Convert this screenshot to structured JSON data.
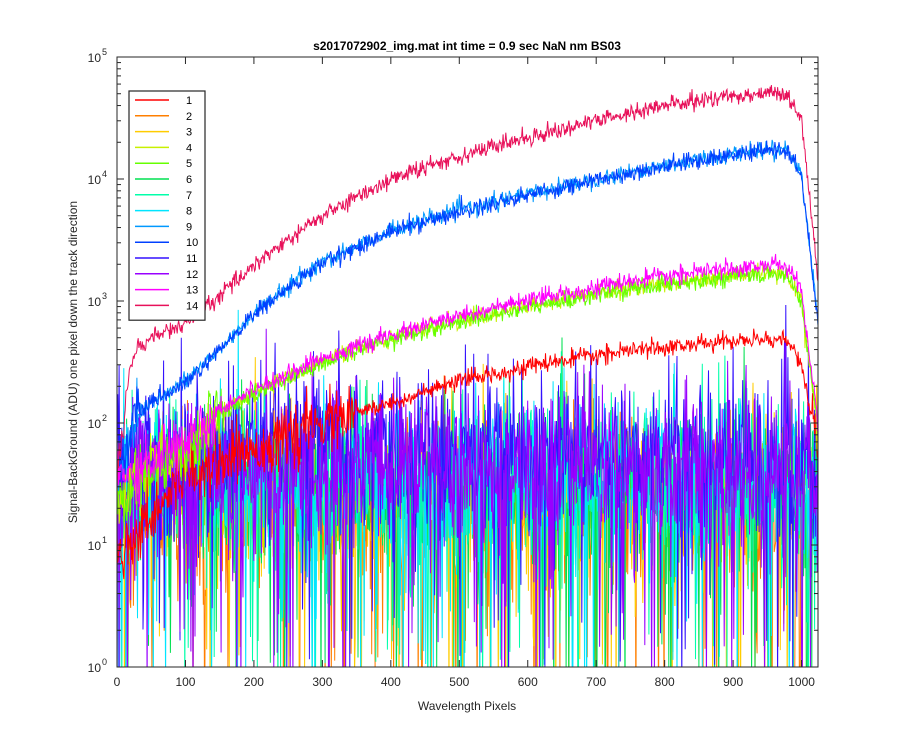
{
  "chart_data": {
    "type": "line",
    "title": "s2017072902_img.mat int time = 0.9 sec  NaN nm BS03",
    "xlabel": "Wavelength Pixels",
    "ylabel": "Signal-BackGround (ADU) one pixel down the track direction",
    "xlim": [
      0,
      1024
    ],
    "ylim": [
      1,
      100000
    ],
    "yscale": "log",
    "grid": false,
    "legend_position": "top-left",
    "x_ticks": [
      0,
      100,
      200,
      300,
      400,
      500,
      600,
      700,
      800,
      900,
      1000
    ],
    "y_ticks": [
      {
        "value": 1,
        "label": "10",
        "exp": "0"
      },
      {
        "value": 10,
        "label": "10",
        "exp": "1"
      },
      {
        "value": 100,
        "label": "10",
        "exp": "2"
      },
      {
        "value": 1000,
        "label": "10",
        "exp": "3"
      },
      {
        "value": 10000,
        "label": "10",
        "exp": "4"
      },
      {
        "value": 100000,
        "label": "10",
        "exp": "5"
      }
    ],
    "series": [
      {
        "name": "1",
        "color": "#ff0000",
        "kind": "signal",
        "x": [
          0,
          100,
          200,
          250,
          300,
          400,
          500,
          600,
          700,
          800,
          900,
          960,
          980,
          1000,
          1024
        ],
        "y": [
          8,
          40,
          62,
          75,
          100,
          145,
          220,
          290,
          360,
          420,
          470,
          490,
          470,
          300,
          60
        ]
      },
      {
        "name": "2",
        "color": "#ff7f00",
        "kind": "noise",
        "x": [
          0,
          200,
          400,
          600,
          800,
          1000,
          1024
        ],
        "y": [
          22,
          22,
          22,
          22,
          22,
          22,
          18
        ]
      },
      {
        "name": "3",
        "color": "#ffcc00",
        "kind": "noise",
        "x": [
          0,
          200,
          400,
          600,
          800,
          1000,
          1024
        ],
        "y": [
          26,
          26,
          26,
          26,
          26,
          26,
          20
        ]
      },
      {
        "name": "4",
        "color": "#c8f000",
        "kind": "signal",
        "x": [
          0,
          50,
          100,
          150,
          200,
          300,
          400,
          500,
          600,
          700,
          800,
          900,
          960,
          980,
          1000,
          1024
        ],
        "y": [
          20,
          45,
          60,
          120,
          180,
          320,
          500,
          700,
          900,
          1150,
          1400,
          1600,
          1700,
          1600,
          1000,
          90
        ]
      },
      {
        "name": "5",
        "color": "#66ff00",
        "kind": "signal",
        "x": [
          0,
          50,
          100,
          150,
          200,
          300,
          400,
          500,
          600,
          700,
          800,
          900,
          960,
          980,
          1000,
          1024
        ],
        "y": [
          20,
          45,
          60,
          115,
          175,
          310,
          480,
          680,
          880,
          1120,
          1380,
          1580,
          1680,
          1580,
          980,
          90
        ]
      },
      {
        "name": "6",
        "color": "#00e050",
        "kind": "noise",
        "x": [
          0,
          200,
          400,
          600,
          800,
          1000,
          1024
        ],
        "y": [
          30,
          30,
          30,
          30,
          30,
          30,
          22
        ]
      },
      {
        "name": "7",
        "color": "#00ffaa",
        "kind": "noise",
        "x": [
          0,
          200,
          400,
          600,
          800,
          1000,
          1024
        ],
        "y": [
          34,
          34,
          34,
          34,
          34,
          34,
          25
        ]
      },
      {
        "name": "8",
        "color": "#00e5ff",
        "kind": "noise",
        "x": [
          0,
          200,
          400,
          600,
          800,
          1000,
          1024
        ],
        "y": [
          36,
          36,
          36,
          36,
          36,
          36,
          26
        ]
      },
      {
        "name": "9",
        "color": "#0099ff",
        "kind": "signal",
        "x": [
          0,
          30,
          50,
          100,
          150,
          200,
          300,
          400,
          500,
          600,
          700,
          800,
          900,
          960,
          980,
          1000,
          1024
        ],
        "y": [
          40,
          120,
          150,
          220,
          400,
          800,
          2100,
          3800,
          5500,
          7500,
          10000,
          13000,
          16000,
          18000,
          17000,
          11000,
          700
        ]
      },
      {
        "name": "10",
        "color": "#0040ff",
        "kind": "signal",
        "x": [
          0,
          30,
          50,
          100,
          150,
          200,
          300,
          400,
          500,
          600,
          700,
          800,
          900,
          960,
          980,
          1000,
          1024
        ],
        "y": [
          40,
          115,
          145,
          210,
          390,
          780,
          2050,
          3700,
          5400,
          7400,
          9800,
          12800,
          15800,
          17500,
          16500,
          10500,
          650
        ]
      },
      {
        "name": "11",
        "color": "#3311ff",
        "kind": "noise",
        "x": [
          0,
          200,
          400,
          600,
          800,
          1000,
          1024
        ],
        "y": [
          52,
          55,
          58,
          58,
          58,
          55,
          40
        ]
      },
      {
        "name": "12",
        "color": "#9900ff",
        "kind": "noise",
        "x": [
          0,
          200,
          400,
          600,
          800,
          1000,
          1024
        ],
        "y": [
          38,
          42,
          45,
          45,
          45,
          42,
          30
        ]
      },
      {
        "name": "13",
        "color": "#ff00ff",
        "kind": "signal",
        "x": [
          0,
          50,
          100,
          150,
          200,
          300,
          400,
          500,
          600,
          700,
          800,
          900,
          960,
          980,
          1000,
          1024
        ],
        "y": [
          35,
          50,
          70,
          130,
          190,
          340,
          520,
          760,
          1000,
          1300,
          1600,
          1850,
          2000,
          1900,
          1200,
          100
        ]
      },
      {
        "name": "14",
        "color": "#e8115a",
        "kind": "signal",
        "x": [
          0,
          20,
          30,
          50,
          100,
          150,
          200,
          300,
          400,
          500,
          600,
          700,
          800,
          900,
          960,
          980,
          1000,
          1024
        ],
        "y": [
          40,
          300,
          420,
          500,
          650,
          1100,
          2000,
          5000,
          10000,
          15500,
          22000,
          30000,
          40000,
          48000,
          52000,
          48000,
          30000,
          1500
        ]
      }
    ]
  }
}
